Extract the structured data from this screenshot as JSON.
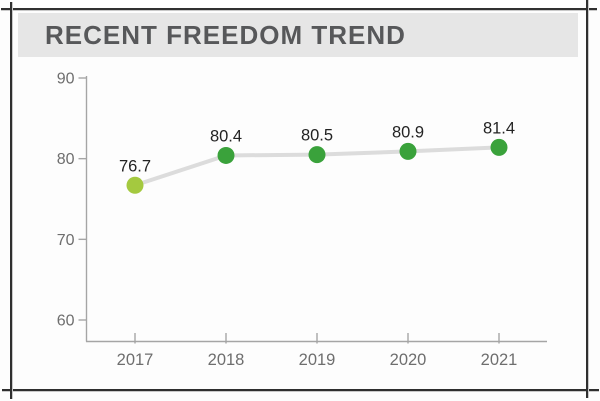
{
  "header": {
    "title": "RECENT FREEDOM TREND"
  },
  "chart_data": {
    "type": "line",
    "title": "RECENT FREEDOM TREND",
    "categories": [
      "2017",
      "2018",
      "2019",
      "2020",
      "2021"
    ],
    "values": [
      76.7,
      80.4,
      80.5,
      80.9,
      81.4
    ],
    "data_labels": [
      "76.7",
      "80.4",
      "80.5",
      "80.9",
      "81.4"
    ],
    "yticks": [
      60,
      70,
      80,
      90
    ],
    "ylim": [
      57,
      91
    ],
    "xlabel": "",
    "ylabel": "",
    "grid": false,
    "legend_position": "none",
    "point_colors": [
      "#a4c93f",
      "#3aa23b",
      "#3aa23b",
      "#3aa23b",
      "#3aa23b"
    ],
    "line_color": "#dcdcdc",
    "axis_color": "#a5a5a5",
    "tick_label_color": "#6e6e6e",
    "data_label_color": "#232323"
  },
  "colors": {
    "header_bg": "#e6e6e6",
    "header_text": "#57585a",
    "frame": "#2f2f2f",
    "page_bg": "#fdfdfd",
    "accent_green_light": "#a4c93f",
    "accent_green_dark": "#3aa23b"
  }
}
